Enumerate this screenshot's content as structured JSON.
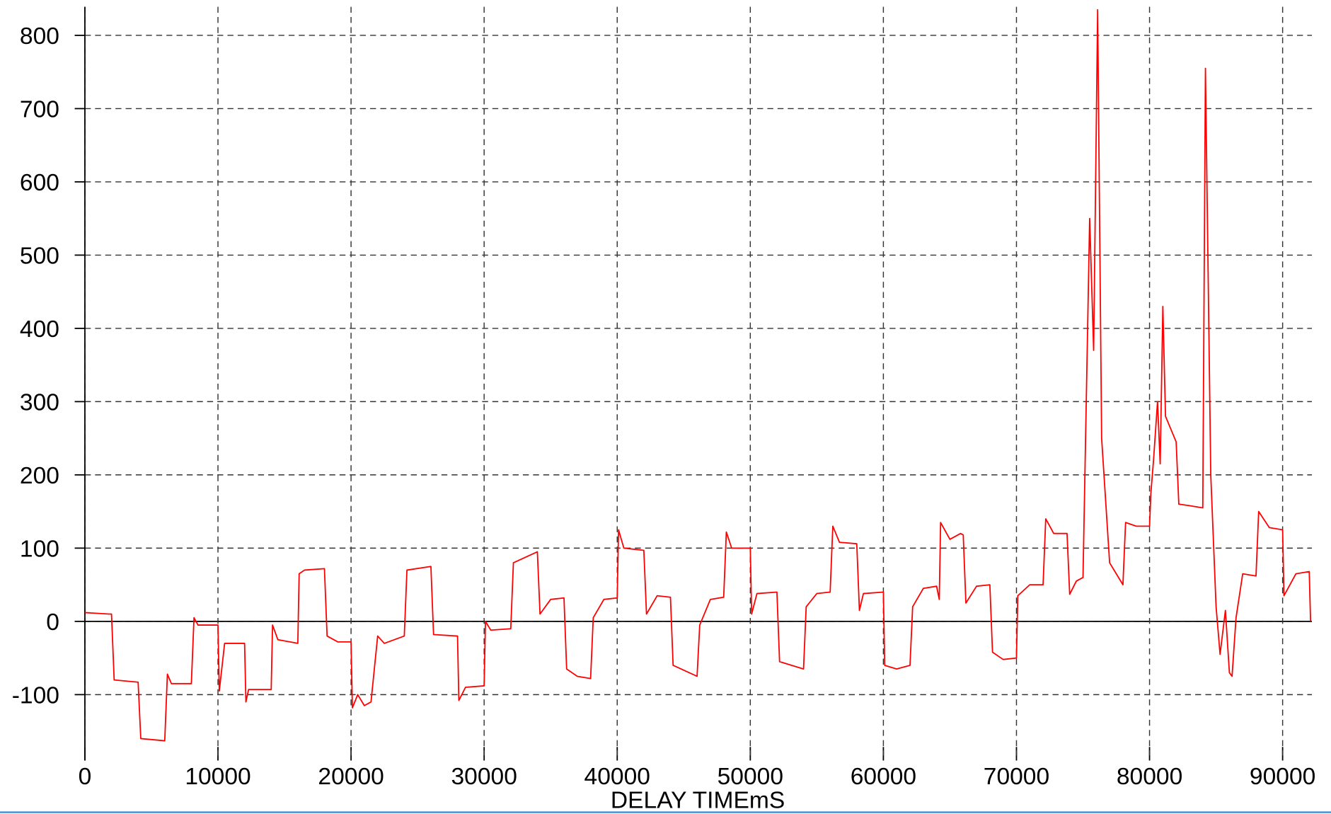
{
  "chart_data": {
    "type": "line",
    "x_label": "DELAY  TIMEmS",
    "xlim": [
      0,
      92200
    ],
    "ylim": [
      -183,
      839
    ],
    "xticks": [
      0,
      10000,
      20000,
      30000,
      40000,
      50000,
      60000,
      70000,
      80000,
      90000
    ],
    "yticks": [
      -100,
      0,
      100,
      200,
      300,
      400,
      500,
      600,
      700,
      800
    ],
    "grid": true,
    "series": [
      {
        "color": "#ff0000",
        "x": [
          0,
          1800,
          2000,
          2200,
          4000,
          4200,
          6000,
          6200,
          6500,
          8000,
          8200,
          8500,
          10000,
          10100,
          10500,
          12000,
          12100,
          12300,
          14000,
          14100,
          14500,
          16000,
          16100,
          16500,
          18000,
          18200,
          19000,
          20000,
          20100,
          20500,
          21000,
          21500,
          22000,
          22500,
          24000,
          24200,
          26000,
          26200,
          28000,
          28100,
          28600,
          30000,
          30100,
          30500,
          32000,
          32200,
          34000,
          34200,
          35000,
          36000,
          36200,
          37000,
          38000,
          38200,
          39000,
          40000,
          40100,
          40500,
          42000,
          42200,
          43000,
          44000,
          44200,
          46000,
          46200,
          47000,
          48000,
          48200,
          48600,
          50000,
          50100,
          50500,
          52000,
          52200,
          54000,
          54200,
          55000,
          56000,
          56200,
          56700,
          58000,
          58200,
          58500,
          60000,
          60100,
          61000,
          62000,
          62200,
          63000,
          64000,
          64200,
          64300,
          65000,
          65800,
          66000,
          66200,
          67000,
          68000,
          68200,
          69000,
          70000,
          70100,
          71000,
          72000,
          72200,
          72800,
          73800,
          74000,
          74500,
          75000,
          75500,
          75800,
          76100,
          76400,
          77000,
          78000,
          78200,
          79000,
          80000,
          80100,
          80300,
          80600,
          80800,
          81000,
          81200,
          82000,
          82200,
          83000,
          84000,
          84200,
          84600,
          85000,
          85300,
          85700,
          86000,
          86200,
          86500,
          87000,
          88000,
          88200,
          89000,
          90000,
          90100,
          91000,
          92000,
          92100
        ],
        "values": [
          12,
          10,
          10,
          -80,
          -83,
          -160,
          -163,
          -72,
          -85,
          -85,
          5,
          -5,
          -5,
          -95,
          -30,
          -30,
          -110,
          -93,
          -93,
          -5,
          -25,
          -30,
          65,
          70,
          72,
          -20,
          -28,
          -28,
          -118,
          -100,
          -115,
          -110,
          -20,
          -30,
          -20,
          70,
          75,
          -18,
          -20,
          -108,
          -90,
          -88,
          0,
          -12,
          -10,
          80,
          95,
          10,
          30,
          32,
          -65,
          -75,
          -78,
          5,
          30,
          32,
          125,
          100,
          97,
          10,
          35,
          33,
          -60,
          -75,
          -5,
          30,
          33,
          122,
          100,
          100,
          10,
          38,
          40,
          -55,
          -65,
          20,
          38,
          40,
          130,
          108,
          106,
          15,
          38,
          40,
          -60,
          -65,
          -60,
          20,
          45,
          48,
          30,
          135,
          112,
          120,
          118,
          25,
          48,
          50,
          -42,
          -52,
          -50,
          35,
          50,
          50,
          140,
          120,
          120,
          37,
          55,
          60,
          550,
          370,
          835,
          250,
          80,
          50,
          135,
          130,
          130,
          175,
          220,
          300,
          215,
          430,
          280,
          245,
          160,
          158,
          155,
          755,
          200,
          20,
          -45,
          15,
          -70,
          -75,
          5,
          65,
          62,
          150,
          128,
          125,
          35,
          65,
          68,
          0
        ]
      }
    ]
  }
}
